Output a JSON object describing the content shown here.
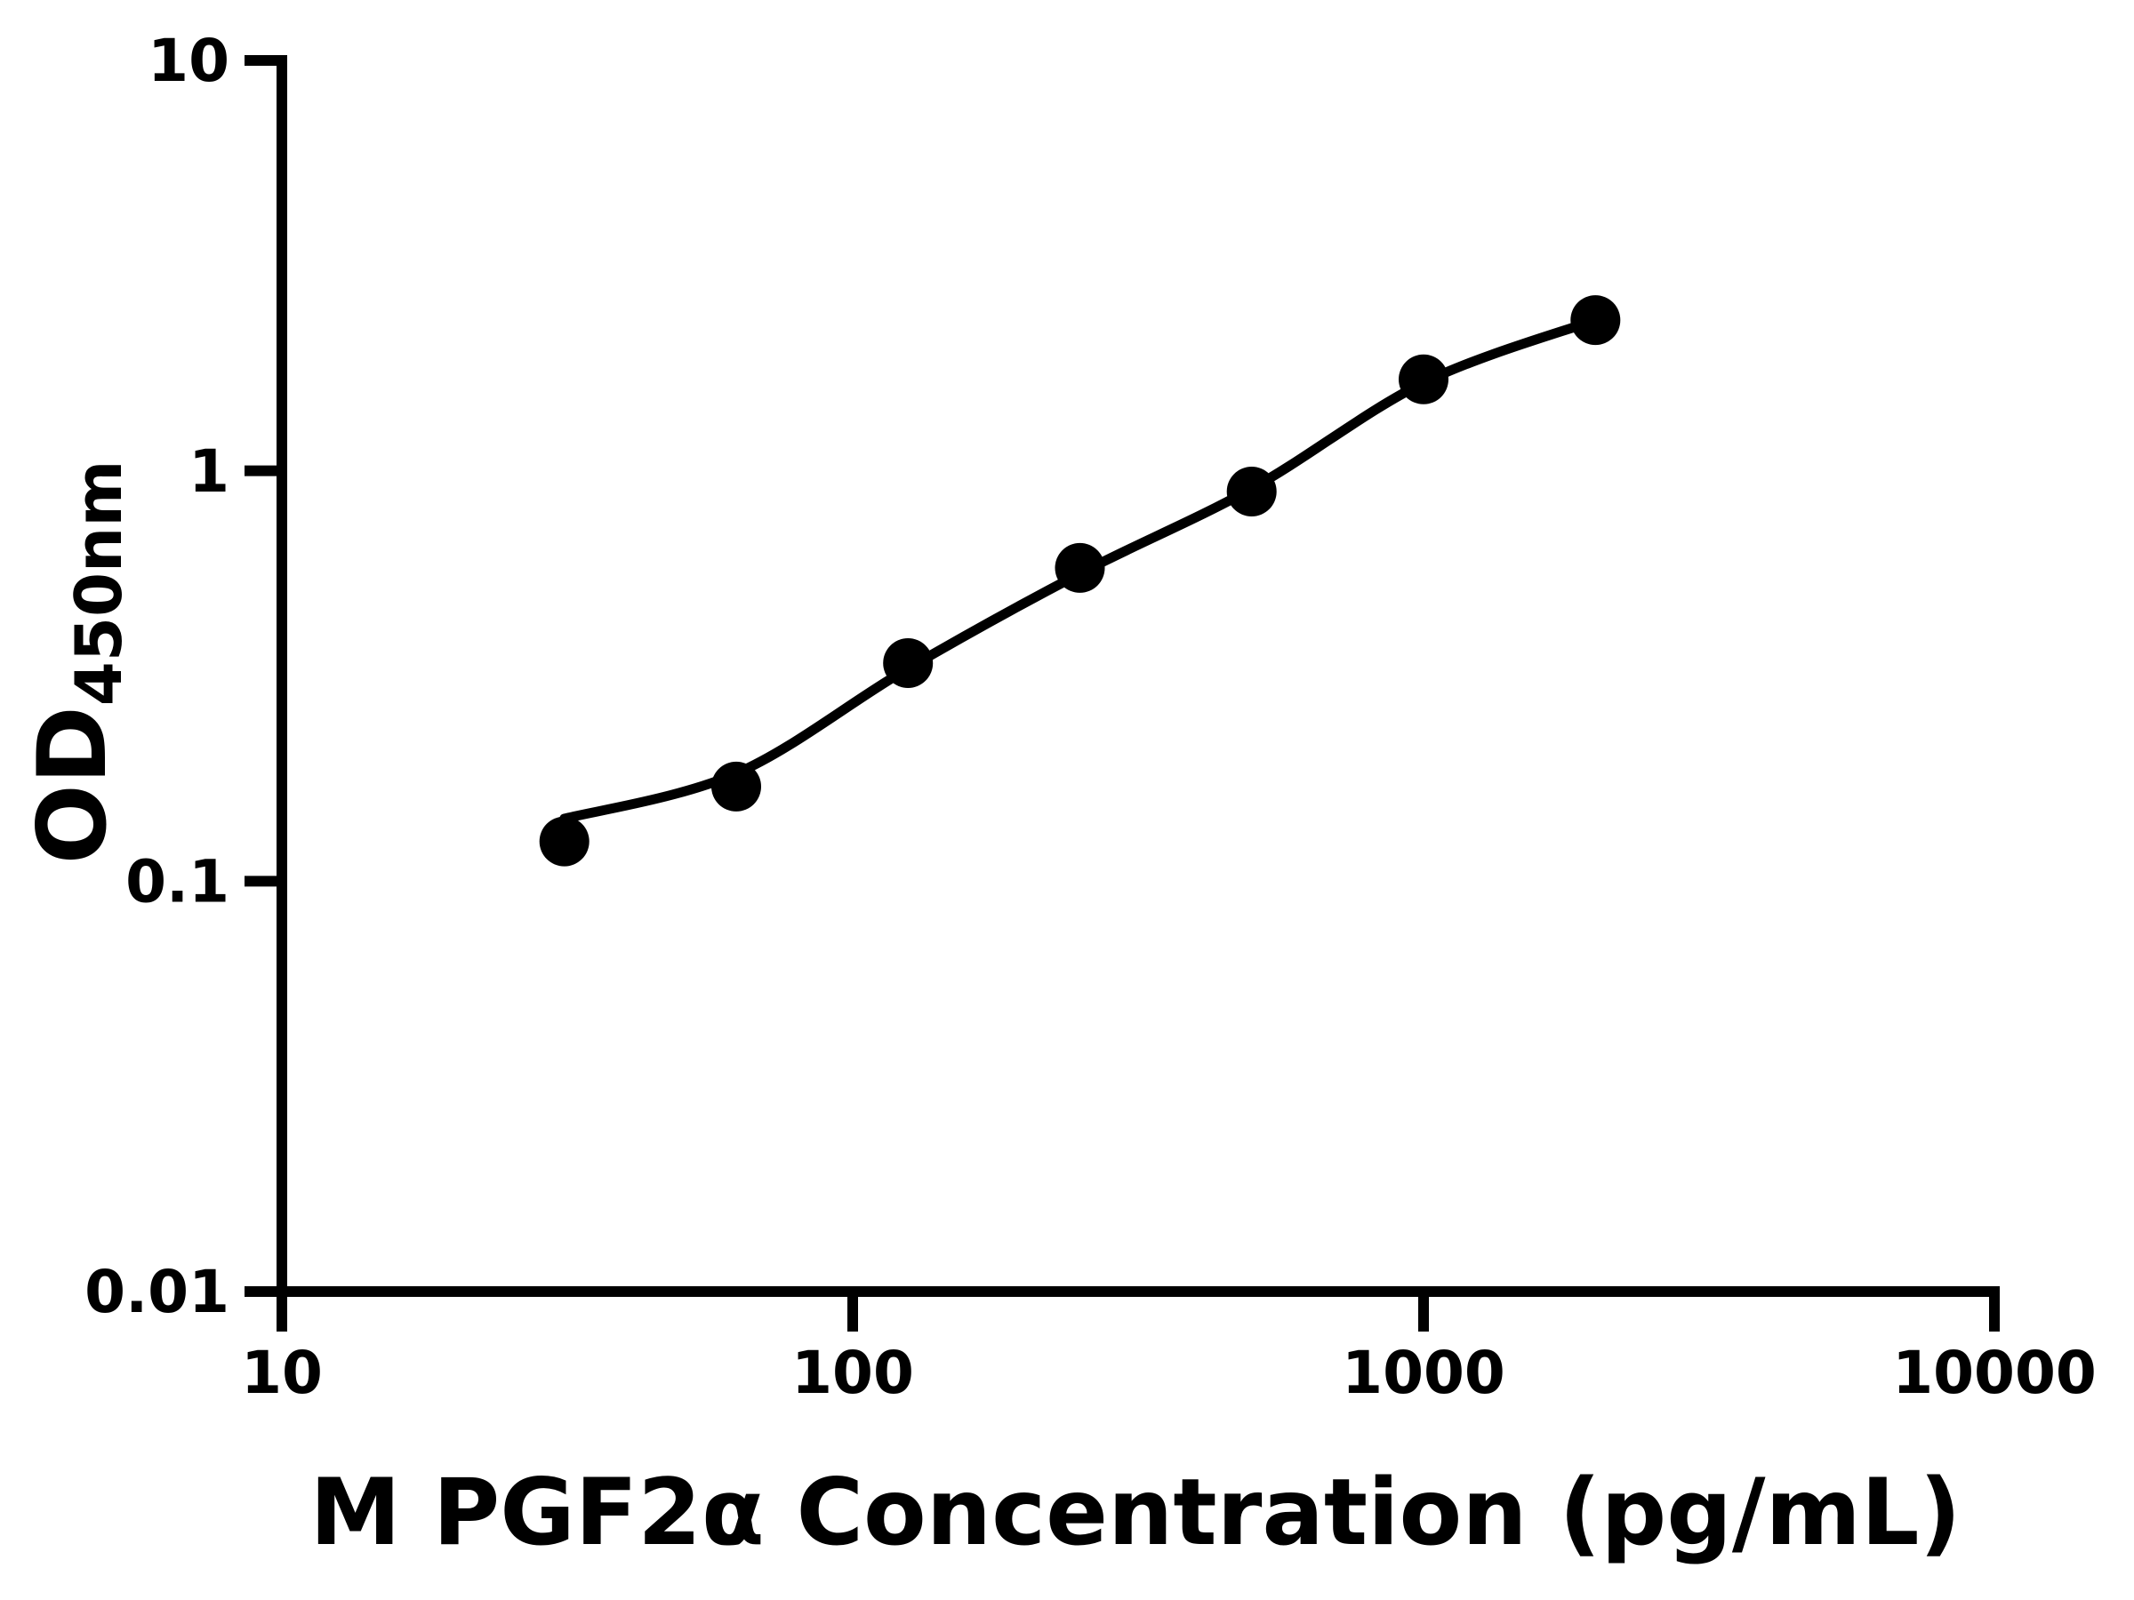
{
  "figure": {
    "background_color": "#ffffff",
    "ink_color": "#000000"
  },
  "chart_data": {
    "type": "scatter",
    "title": "",
    "xlabel": "M PGF2α Concentration (pg/mL)",
    "ylabel_main": "OD",
    "ylabel_sub": "450nm",
    "x_scale": "log10",
    "y_scale": "log10",
    "xlim": [
      10,
      10000
    ],
    "ylim": [
      0.01,
      10
    ],
    "grid": false,
    "legend": "none",
    "x_ticks": {
      "values": [
        10,
        100,
        1000,
        10000
      ],
      "labels": [
        "10",
        "100",
        "1000",
        "10000"
      ]
    },
    "y_ticks": {
      "values": [
        10,
        1,
        0.1,
        0.01
      ],
      "labels": [
        "10",
        "1",
        "0.1",
        "0.01"
      ]
    },
    "series": [
      {
        "name": "standard-points",
        "marker": "filled-circle",
        "color": "#000000",
        "points": [
          {
            "x": 31.25,
            "y": 0.125
          },
          {
            "x": 62.5,
            "y": 0.17
          },
          {
            "x": 125,
            "y": 0.34
          },
          {
            "x": 250,
            "y": 0.58
          },
          {
            "x": 500,
            "y": 0.89
          },
          {
            "x": 1000,
            "y": 1.67
          },
          {
            "x": 2000,
            "y": 2.33
          }
        ]
      }
    ],
    "fit_curve": {
      "name": "fitted-standard-curve",
      "color": "#000000",
      "points": [
        {
          "x": 31.25,
          "y": 0.142
        },
        {
          "x": 62.5,
          "y": 0.183
        },
        {
          "x": 125,
          "y": 0.33
        },
        {
          "x": 250,
          "y": 0.562
        },
        {
          "x": 500,
          "y": 0.905
        },
        {
          "x": 1000,
          "y": 1.64
        },
        {
          "x": 2000,
          "y": 2.33
        }
      ]
    }
  }
}
